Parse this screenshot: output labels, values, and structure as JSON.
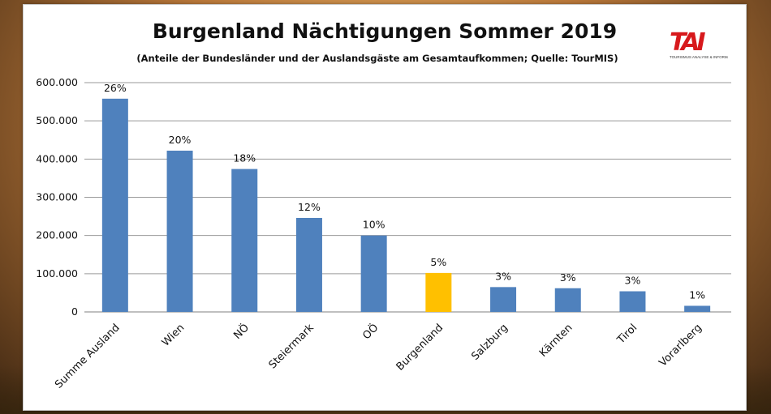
{
  "chart_data": {
    "type": "bar",
    "title": "Burgenland Nächtigungen Sommer 2019",
    "subtitle": "(Anteile der Bundesländer und der Auslandsgäste  am Gesamtaufkommen;  Quelle: TourMIS)",
    "categories": [
      "Summe Ausland",
      "Wien",
      "NÖ",
      "Steiermark",
      "OÖ",
      "Burgenland",
      "Salzburg",
      "Kärnten",
      "Tirol",
      "Vorarlberg"
    ],
    "values": [
      558000,
      422000,
      374000,
      246000,
      200000,
      102000,
      65000,
      62000,
      54000,
      16000
    ],
    "data_labels": [
      "26%",
      "20%",
      "18%",
      "12%",
      "10%",
      "5%",
      "3%",
      "3%",
      "3%",
      "1%"
    ],
    "highlight_category": "Burgenland",
    "bar_color": "#4f81bd",
    "highlight_color": "#ffc000",
    "ylim": [
      0,
      600000
    ],
    "y_ticks": [
      0,
      100000,
      200000,
      300000,
      400000,
      500000,
      600000
    ],
    "y_tick_labels": [
      "0",
      "100.000",
      "200.000",
      "300.000",
      "400.000",
      "500.000",
      "600.000"
    ],
    "grid": true,
    "xlabel": "",
    "ylabel": ""
  },
  "logo": {
    "mark": "TAI",
    "tagline": "TOURISMUS ANALYSE & INFORMATION"
  }
}
